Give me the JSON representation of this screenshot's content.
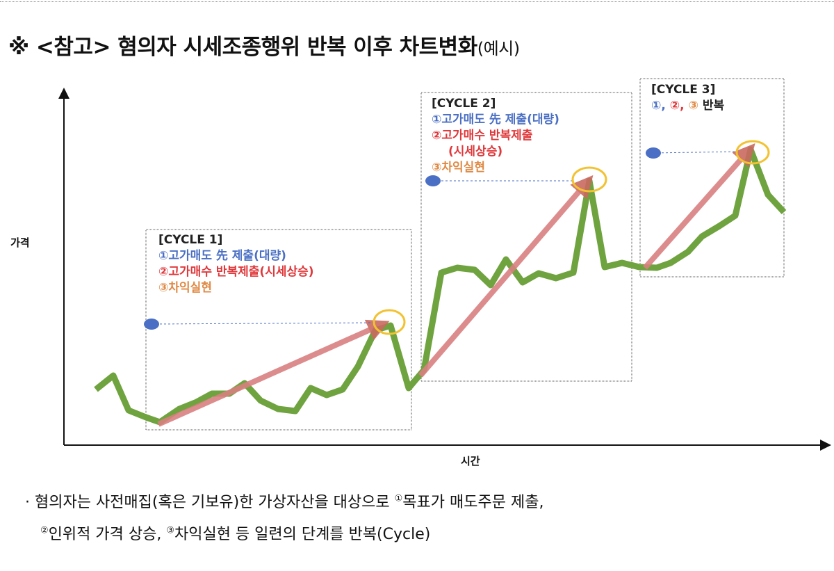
{
  "title": {
    "main": "※  <참고>  혐의자  시세조종행위  반복  이후  차트변화",
    "suffix": "(예시)"
  },
  "axes": {
    "y_label": "가격",
    "x_label": "시간"
  },
  "cycles": [
    {
      "header": "[CYCLE 1]",
      "step1": "①고가매도 先 제출(대량)",
      "step2": "②고가매수 반복제출(시세상승)",
      "step3": "③차익실현"
    },
    {
      "header": "[CYCLE 2]",
      "step1": "①고가매도 先 제출(대량)",
      "step2": "②고가매수 반복제출",
      "step2b": "(시세상승)",
      "step3": "③차익실현"
    },
    {
      "header": "[CYCLE 3]",
      "s1": "①,",
      "s2": "②,",
      "s3": "③",
      "rest": "반복"
    }
  ],
  "colors": {
    "price_line": "#6fa33f",
    "trend_arrow": "#d98080",
    "peak_circle": "#f2c230",
    "sell_dot": "#4a6fc4"
  },
  "description": {
    "line1": "· 혐의자는   사전매집(혹은   기보유)한   가상자산을   대상으로   ",
    "line1_sup": "①",
    "line1_b": "목표가   매도주문   제출,",
    "line2_sup1": "②",
    "line2_a": "인위적  가격  상승,  ",
    "line2_sup2": "③",
    "line2_b": "차익실현  등  일련의  단계를  반복(Cycle)"
  }
}
